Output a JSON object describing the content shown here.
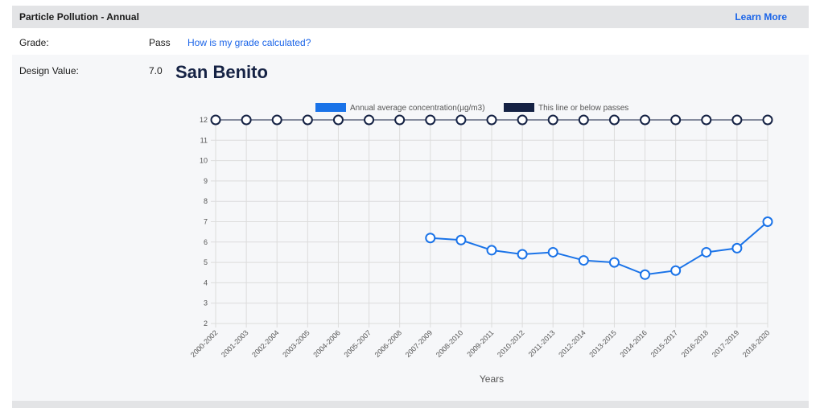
{
  "header": {
    "title": "Particle Pollution - Annual",
    "learn_more": "Learn More"
  },
  "grade": {
    "label": "Grade:",
    "value": "Pass",
    "link": "How is my grade calculated?"
  },
  "design_value": {
    "label": "Design Value:",
    "value": "7.0"
  },
  "location": {
    "name": "San Benito"
  },
  "colors": {
    "accent": "#1a73e8",
    "threshold": "#152244",
    "header_bg": "#e3e4e6",
    "link": "#1a64e8"
  },
  "chart_data": {
    "type": "line",
    "categories": [
      "2000-2002",
      "2001-2003",
      "2002-2004",
      "2003-2005",
      "2004-2006",
      "2005-2007",
      "2006-2008",
      "2007-2009",
      "2008-2010",
      "2009-2011",
      "2010-2012",
      "2011-2013",
      "2012-2014",
      "2013-2015",
      "2014-2016",
      "2015-2017",
      "2016-2018",
      "2017-2019",
      "2018-2020"
    ],
    "series": [
      {
        "name": "Annual average concentration(µg/m3)",
        "color": "#1a73e8",
        "values": [
          null,
          null,
          null,
          null,
          null,
          null,
          null,
          6.2,
          6.1,
          5.6,
          5.4,
          5.5,
          5.1,
          5.0,
          4.4,
          4.6,
          5.5,
          5.7,
          7.0
        ]
      },
      {
        "name": "This line or below passes",
        "color": "#152244",
        "values": [
          12,
          12,
          12,
          12,
          12,
          12,
          12,
          12,
          12,
          12,
          12,
          12,
          12,
          12,
          12,
          12,
          12,
          12,
          12
        ]
      }
    ],
    "xlabel": "Years",
    "ylabel": "",
    "ylim": [
      2,
      12
    ],
    "yticks": [
      2,
      3,
      4,
      5,
      6,
      7,
      8,
      9,
      10,
      11,
      12
    ],
    "grid": true,
    "legend": "top"
  }
}
